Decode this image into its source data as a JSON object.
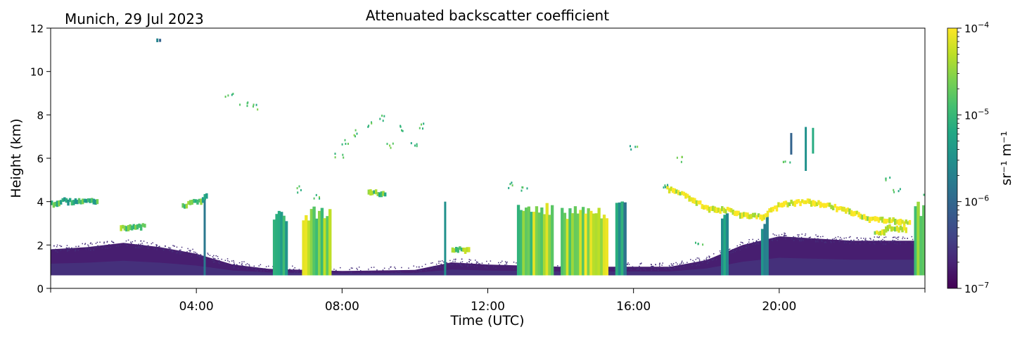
{
  "chart_data": {
    "type": "heatmap",
    "title": "Attenuated backscatter coefficient",
    "subtitle": "Munich, 29 Jul 2023",
    "xlabel": "Time (UTC)",
    "ylabel": "Height (km)",
    "xlim": [
      0,
      24
    ],
    "ylim": [
      0,
      12
    ],
    "x_ticks": [
      {
        "value": 4,
        "label": "04:00"
      },
      {
        "value": 8,
        "label": "08:00"
      },
      {
        "value": 12,
        "label": "12:00"
      },
      {
        "value": 16,
        "label": "16:00"
      },
      {
        "value": 20,
        "label": "20:00"
      }
    ],
    "y_ticks": [
      0,
      2,
      4,
      6,
      8,
      10,
      12
    ],
    "colorbar": {
      "label": "sr⁻¹ m⁻¹",
      "scale": "log",
      "range": [
        1e-07,
        0.0001
      ],
      "colormap": "viridis",
      "ticks": [
        {
          "value": 1e-07,
          "base": "10",
          "exp": "−7"
        },
        {
          "value": 1e-06,
          "base": "10",
          "exp": "−6"
        },
        {
          "value": 1e-05,
          "base": "10",
          "exp": "−5"
        },
        {
          "value": 0.0001,
          "base": "10",
          "exp": "−4"
        }
      ]
    },
    "grid": false,
    "features": {
      "boundary_layer": [
        [
          0,
          1.8
        ],
        [
          1,
          1.9
        ],
        [
          2,
          2.1
        ],
        [
          3,
          1.9
        ],
        [
          4,
          1.6
        ],
        [
          5,
          1.1
        ],
        [
          6,
          0.9
        ],
        [
          8,
          0.8
        ],
        [
          10,
          0.85
        ],
        [
          11,
          1.2
        ],
        [
          12,
          1.1
        ],
        [
          14,
          1.0
        ],
        [
          16,
          1.0
        ],
        [
          17,
          1.0
        ],
        [
          18,
          1.3
        ],
        [
          19,
          2.0
        ],
        [
          20,
          2.4
        ],
        [
          21,
          2.3
        ],
        [
          22,
          2.2
        ],
        [
          23,
          2.2
        ],
        [
          24,
          2.2
        ]
      ],
      "cloud_layers": [
        {
          "points": [
            [
              0.0,
              3.9
            ],
            [
              0.3,
              4.05
            ],
            [
              0.8,
              4.0
            ],
            [
              1.3,
              4.05
            ]
          ],
          "level": -5.2
        },
        {
          "points": [
            [
              1.9,
              2.85
            ],
            [
              2.2,
              2.8
            ],
            [
              2.6,
              2.9
            ]
          ],
          "level": -5.0
        },
        {
          "points": [
            [
              3.6,
              3.8
            ],
            [
              4.1,
              4.1
            ],
            [
              4.3,
              4.3
            ]
          ],
          "level": -5.1
        },
        {
          "points": [
            [
              8.7,
              4.5
            ],
            [
              9.2,
              4.3
            ]
          ],
          "level": -5.0
        },
        {
          "points": [
            [
              16.9,
              4.6
            ],
            [
              17.4,
              4.3
            ],
            [
              18.0,
              3.7
            ],
            [
              18.6,
              3.6
            ],
            [
              19.0,
              3.4
            ],
            [
              19.5,
              3.3
            ],
            [
              20.0,
              3.9
            ],
            [
              20.8,
              4.0
            ],
            [
              21.4,
              3.8
            ],
            [
              22.0,
              3.5
            ],
            [
              22.5,
              3.2
            ],
            [
              23.0,
              3.15
            ],
            [
              23.6,
              3.0
            ]
          ],
          "level": -4.3
        },
        {
          "points": [
            [
              22.6,
              2.5
            ],
            [
              23.0,
              2.8
            ],
            [
              23.5,
              2.75
            ]
          ],
          "level": -4.4
        },
        {
          "points": [
            [
              11.0,
              1.8
            ],
            [
              11.5,
              1.85
            ]
          ],
          "level": -4.8
        }
      ],
      "precip_columns": [
        {
          "t0": 6.1,
          "t1": 6.5,
          "top": 3.7,
          "level": -5.3
        },
        {
          "t0": 6.9,
          "t1": 7.7,
          "top": 3.8,
          "level": -4.5
        },
        {
          "t0": 12.8,
          "t1": 13.8,
          "top": 4.0,
          "level": -4.6
        },
        {
          "t0": 14.0,
          "t1": 15.3,
          "top": 3.8,
          "level": -4.4
        },
        {
          "t0": 15.5,
          "t1": 15.8,
          "top": 4.5,
          "level": -5.4
        },
        {
          "t0": 18.4,
          "t1": 18.6,
          "top": 3.5,
          "level": -5.6
        },
        {
          "t0": 19.5,
          "t1": 19.7,
          "top": 3.3,
          "level": -5.7
        },
        {
          "t0": 23.7,
          "t1": 24.0,
          "top": 4.0,
          "level": -4.7
        }
      ],
      "thin_fallstreaks": [
        {
          "t": 4.2,
          "top": 4.3,
          "level": -5.8
        },
        {
          "t": 10.8,
          "top": 4.0,
          "level": -5.5
        }
      ],
      "high_clouds": [
        {
          "t0": 20.0,
          "t1": 21.2,
          "bottom": 5.3,
          "top": 7.6,
          "level": -5.6
        },
        {
          "t0": 2.9,
          "t1": 3.05,
          "bottom": 11.35,
          "top": 11.55,
          "level": -5.7
        }
      ],
      "scattered_midlevel": [
        [
          4.9,
          8.9
        ],
        [
          5.3,
          8.5
        ],
        [
          5.6,
          8.4
        ],
        [
          6.8,
          4.6
        ],
        [
          7.3,
          4.3
        ],
        [
          7.9,
          6.2
        ],
        [
          8.1,
          6.8
        ],
        [
          8.4,
          7.2
        ],
        [
          8.7,
          7.6
        ],
        [
          9.1,
          7.9
        ],
        [
          9.3,
          6.6
        ],
        [
          9.6,
          7.4
        ],
        [
          10.0,
          6.7
        ],
        [
          10.2,
          7.5
        ],
        [
          12.6,
          4.8
        ],
        [
          13.0,
          4.6
        ],
        [
          16.0,
          6.5
        ],
        [
          16.8,
          4.7
        ],
        [
          17.3,
          6.0
        ],
        [
          17.8,
          2.2
        ],
        [
          20.2,
          5.8
        ],
        [
          22.9,
          5.1
        ],
        [
          23.2,
          4.6
        ],
        [
          24.0,
          4.3
        ]
      ]
    }
  }
}
